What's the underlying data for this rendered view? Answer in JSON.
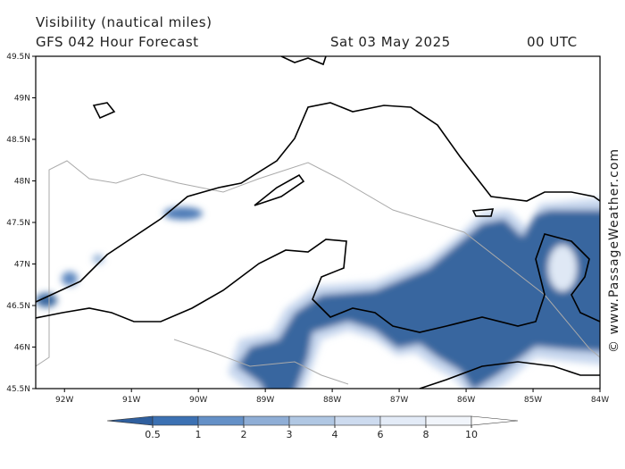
{
  "header": {
    "title": "Visibility (nautical miles)",
    "model": "GFS 042 Hour Forecast",
    "date": "Sat 03 May 2025",
    "time": "00 UTC"
  },
  "map": {
    "xlim": [
      -92.43,
      -84
    ],
    "ylim": [
      45.5,
      49.5
    ],
    "xticks": [
      {
        "value": -92,
        "label": "92W"
      },
      {
        "value": -91,
        "label": "91W"
      },
      {
        "value": -90,
        "label": "90W"
      },
      {
        "value": -89,
        "label": "89W"
      },
      {
        "value": -88,
        "label": "88W"
      },
      {
        "value": -87,
        "label": "87W"
      },
      {
        "value": -86,
        "label": "86W"
      },
      {
        "value": -85,
        "label": "85W"
      },
      {
        "value": -84,
        "label": "84W"
      }
    ],
    "yticks": [
      {
        "value": 45.5,
        "label": "45.5N"
      },
      {
        "value": 46,
        "label": "46N"
      },
      {
        "value": 46.5,
        "label": "46.5N"
      },
      {
        "value": 47,
        "label": "47N"
      },
      {
        "value": 47.5,
        "label": "47.5N"
      },
      {
        "value": 48,
        "label": "48N"
      },
      {
        "value": 48.5,
        "label": "48.5N"
      },
      {
        "value": 49,
        "label": "49N"
      },
      {
        "value": 49.5,
        "label": "49.5N"
      }
    ]
  },
  "legend": {
    "levels": [
      0.5,
      1,
      2,
      3,
      4,
      6,
      8,
      10
    ],
    "colors": [
      "#2f5f9e",
      "#3c71b3",
      "#6490c7",
      "#8faed6",
      "#b0c7e3",
      "#cddbef",
      "#e3ebf7",
      "#f1f5fb",
      "#ffffff"
    ]
  },
  "credit": "© www.PassageWeather.com"
}
